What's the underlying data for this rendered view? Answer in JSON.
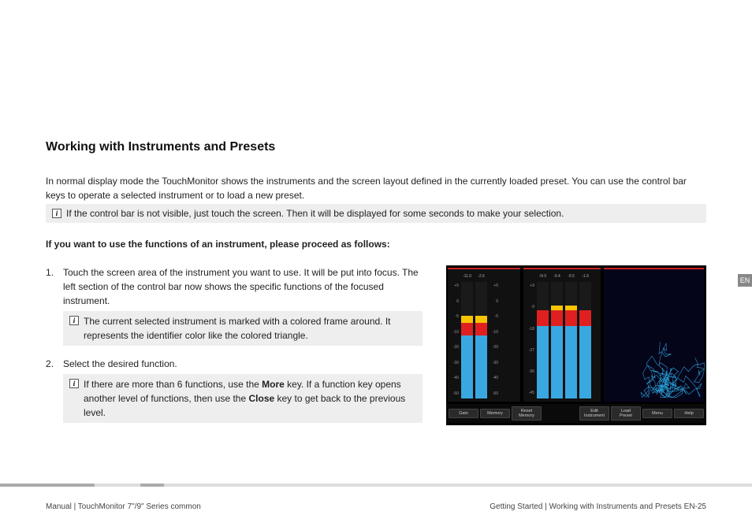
{
  "heading": "Working with Instruments and Presets",
  "intro": "In normal display mode the TouchMonitor shows the instruments and the screen layout defined in the currently loaded preset. You can use the control bar keys to operate a selected instrument or to load a new preset.",
  "topNote": "If the control bar is not visible, just touch the screen. Then it will be displayed for some seconds to make your selection.",
  "subhead": "If you want to use the functions of an instrument, please proceed as follows:",
  "steps": {
    "s1": "Touch the screen area of the instrument you want to use. It will be put into focus. The left section of the control bar now shows the specific functions of the focused instrument.",
    "s1note": "The current selected instrument is marked with a colored frame around. It represents the identifier color like the colored triangle.",
    "s2": "Select the desired function.",
    "s2note_a": "If there are more than 6 functions, use the ",
    "s2note_more": "More",
    "s2note_b": " key. If a function key opens another level of functions, then use the ",
    "s2note_close": "Close",
    "s2note_c": " key to get back to the previous level."
  },
  "sideTab": "EN",
  "footer": {
    "left": "Manual | TouchMonitor 7\"/9\" Series common",
    "right": "Getting Started | Working with Instruments and Presets     EN-25"
  },
  "screenshot": {
    "scale_ticks": [
      "+5",
      "0",
      "-5",
      "-10",
      "-20",
      "-30",
      "-40",
      "-50"
    ],
    "scale_ticks_mid": [
      "+9",
      "-9",
      "-18",
      "-27",
      "-36",
      "-45"
    ],
    "panel_left_labels": [
      "-11.0",
      "-2.6"
    ],
    "panel_mid_labels": [
      "-N 0",
      "-9.4",
      "-9.5",
      "-1.9"
    ],
    "colors": {
      "background": "#000000",
      "panel": "#111111",
      "barYellow": "#f7c500",
      "barRed": "#e02020",
      "barBlue": "#3aa8e0",
      "accent": "#cc2222",
      "lineCyan": "#2aa0d8",
      "panelRightBg": "#05051a"
    },
    "bars_left": [
      {
        "blue": 54,
        "red": 11,
        "yellow": 6
      },
      {
        "blue": 54,
        "red": 11,
        "yellow": 6
      }
    ],
    "bars_mid": [
      {
        "blue": 62,
        "red": 14,
        "yellow": 0
      },
      {
        "blue": 62,
        "red": 14,
        "yellow": 4
      },
      {
        "blue": 62,
        "red": 14,
        "yellow": 4
      },
      {
        "blue": 62,
        "red": 14,
        "yellow": 0
      }
    ],
    "buttons_left": [
      "Gain",
      "Memory",
      "Reset\nMemory"
    ],
    "buttons_right": [
      "Edit\nInstrument",
      "Load\nPreset",
      "Menu",
      "Help"
    ]
  }
}
